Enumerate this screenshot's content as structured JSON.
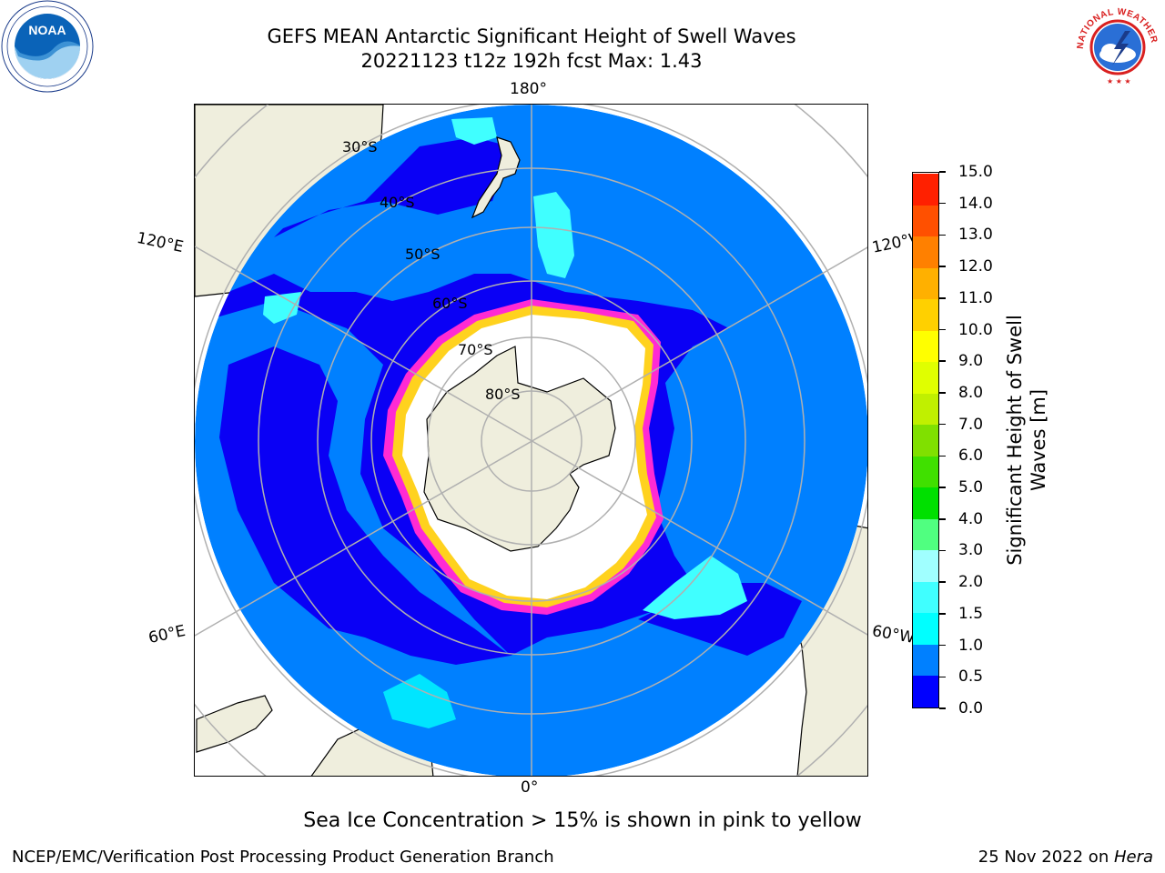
{
  "title": {
    "line1": "GEFS MEAN Antarctic Significant Height of Swell Waves",
    "line2": "20221123 t12z 192h fcst   Max: 1.43"
  },
  "map": {
    "projection": "south-polar-stereographic",
    "longitude_labels": [
      "180°",
      "120°E",
      "120°W",
      "60°E",
      "60°W",
      "0°"
    ],
    "latitude_labels": [
      "30°S",
      "40°S",
      "50°S",
      "60°S",
      "70°S",
      "80°S"
    ],
    "colors": {
      "ocean_deep": "#0a00f5",
      "ocean_mid": "#0080ff",
      "swell_light": "#00e5ff",
      "swell_lighter": "#40ffff",
      "land": "#efeedd",
      "ice_inner": "#ffffff",
      "ice_edge_yellow": "#ffd21e",
      "ice_edge_pink": "#ff2ad4",
      "grid": "#b0b0b0"
    },
    "icons": {
      "noaa_logo": "noaa-logo",
      "nws_logo": "national-weather-service-logo"
    }
  },
  "colorbar": {
    "title_line1": "Significant Height of Swell",
    "title_line2": "Waves [m]",
    "tick_labels": [
      "0.0",
      "0.5",
      "1.0",
      "1.5",
      "2.0",
      "3.0",
      "4.0",
      "5.0",
      "6.0",
      "7.0",
      "8.0",
      "9.0",
      "10.0",
      "11.0",
      "12.0",
      "13.0",
      "14.0",
      "15.0"
    ],
    "colors": [
      "#0000ff",
      "#0080ff",
      "#00ffff",
      "#40ffff",
      "#a0ffff",
      "#50ff80",
      "#00e000",
      "#40e000",
      "#80e000",
      "#c0f000",
      "#e0ff00",
      "#ffff00",
      "#ffd000",
      "#ffb000",
      "#ff8000",
      "#ff5000",
      "#ff2000"
    ]
  },
  "note": "Sea Ice Concentration > 15% is shown in pink to yellow",
  "footer": {
    "left": "NCEP/EMC/Verification Post Processing Product Generation Branch",
    "right_date": "25 Nov 2022 on ",
    "right_host": "Hera"
  },
  "logos": {
    "noaa_text": "NOAA",
    "nws_text": "NATIONAL WEATHER SERVICE"
  }
}
